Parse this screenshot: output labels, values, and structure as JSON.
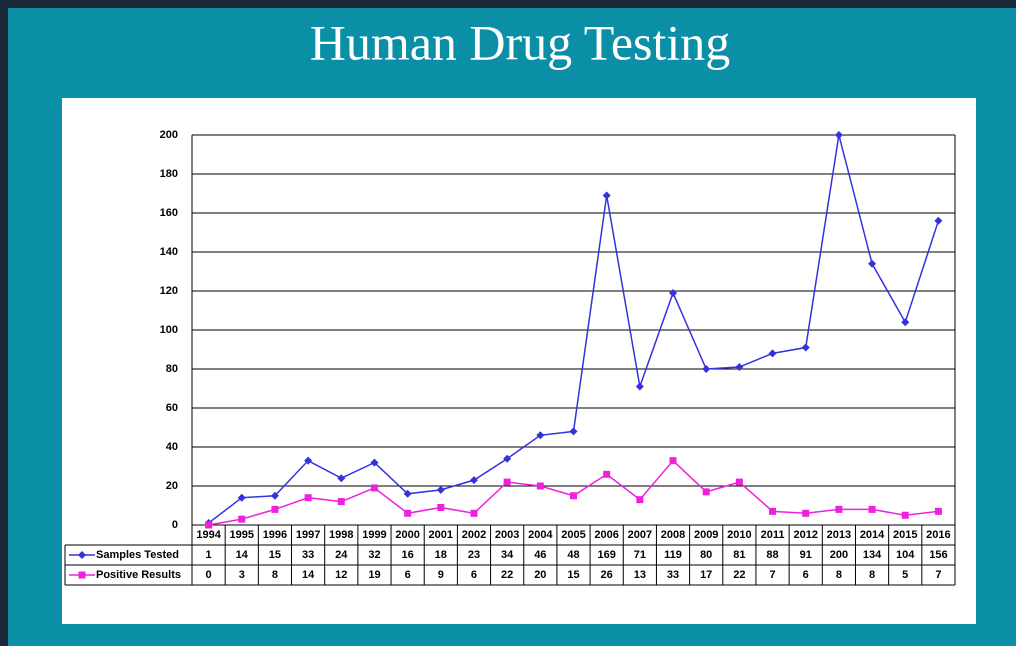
{
  "chart_data": {
    "type": "line",
    "title": "Human Drug Testing",
    "categories": [
      "1994",
      "1995",
      "1996",
      "1997",
      "1998",
      "1999",
      "2000",
      "2001",
      "2002",
      "2003",
      "2004",
      "2005",
      "2006",
      "2007",
      "2008",
      "2009",
      "2010",
      "2011",
      "2012",
      "2013",
      "2014",
      "2015",
      "2016"
    ],
    "series": [
      {
        "name": "Samples Tested",
        "color": "#3333dd",
        "marker": "diamond",
        "values": [
          1,
          14,
          15,
          33,
          24,
          32,
          16,
          18,
          23,
          34,
          46,
          48,
          169,
          71,
          119,
          80,
          81,
          88,
          91,
          200,
          134,
          104,
          156
        ]
      },
      {
        "name": "Positive Results",
        "color": "#ee22dd",
        "marker": "square",
        "values": [
          0,
          3,
          8,
          14,
          12,
          19,
          6,
          9,
          6,
          22,
          20,
          15,
          26,
          13,
          33,
          17,
          22,
          7,
          6,
          8,
          8,
          5,
          7
        ]
      }
    ],
    "ylim": [
      0,
      200
    ],
    "yticks": [
      0,
      20,
      40,
      60,
      80,
      100,
      120,
      140,
      160,
      180,
      200
    ],
    "grid": true
  }
}
